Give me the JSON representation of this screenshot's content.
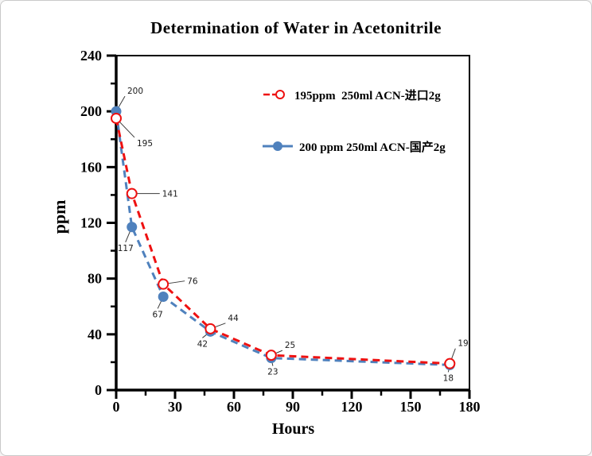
{
  "page": {
    "background_color": "#ffffff",
    "border_color": "#c9c9c9",
    "axis_color": "#000000"
  },
  "chart_data": {
    "type": "line",
    "title": "Determination of Water in Acetonitrile",
    "xlabel": "Hours",
    "ylabel": "ppm",
    "xlim": [
      0,
      180
    ],
    "ylim": [
      0,
      240
    ],
    "xticks": [
      0,
      30,
      60,
      90,
      120,
      150,
      180
    ],
    "yticks": [
      0,
      40,
      80,
      120,
      160,
      200,
      240
    ],
    "x_minor_step": 15,
    "y_minor_step": 20,
    "grid": false,
    "legend_position": "inside-top-right",
    "series": [
      {
        "name": "195ppm  250ml ACN-进口2g",
        "color": "#ee1111",
        "marker": "open-circle",
        "line_style": "dashed",
        "x": [
          0,
          8,
          24,
          48,
          79,
          170
        ],
        "values": [
          195,
          141,
          76,
          44,
          25,
          19
        ],
        "point_labels": [
          "195",
          "141",
          "76",
          "44",
          "25",
          "19"
        ],
        "label_offsets": [
          [
            26,
            35
          ],
          [
            38,
            4
          ],
          [
            30,
            0
          ],
          [
            22,
            -10
          ],
          [
            17,
            -9
          ],
          [
            10,
            -22
          ]
        ]
      },
      {
        "name": "200 ppm 250ml ACN-国产2g",
        "color": "#4f81bd",
        "marker": "filled-circle",
        "line_style": "dashed",
        "x": [
          0,
          8,
          24,
          48,
          79,
          170
        ],
        "values": [
          200,
          117,
          67,
          42,
          23,
          18
        ],
        "point_labels": [
          "200",
          "117",
          "67",
          "42",
          "23",
          "18"
        ],
        "label_offsets": [
          [
            14,
            -22
          ],
          [
            -8,
            30
          ],
          [
            -7,
            26
          ],
          [
            -10,
            19
          ],
          [
            2,
            21
          ],
          [
            -2,
            20
          ]
        ]
      }
    ]
  }
}
